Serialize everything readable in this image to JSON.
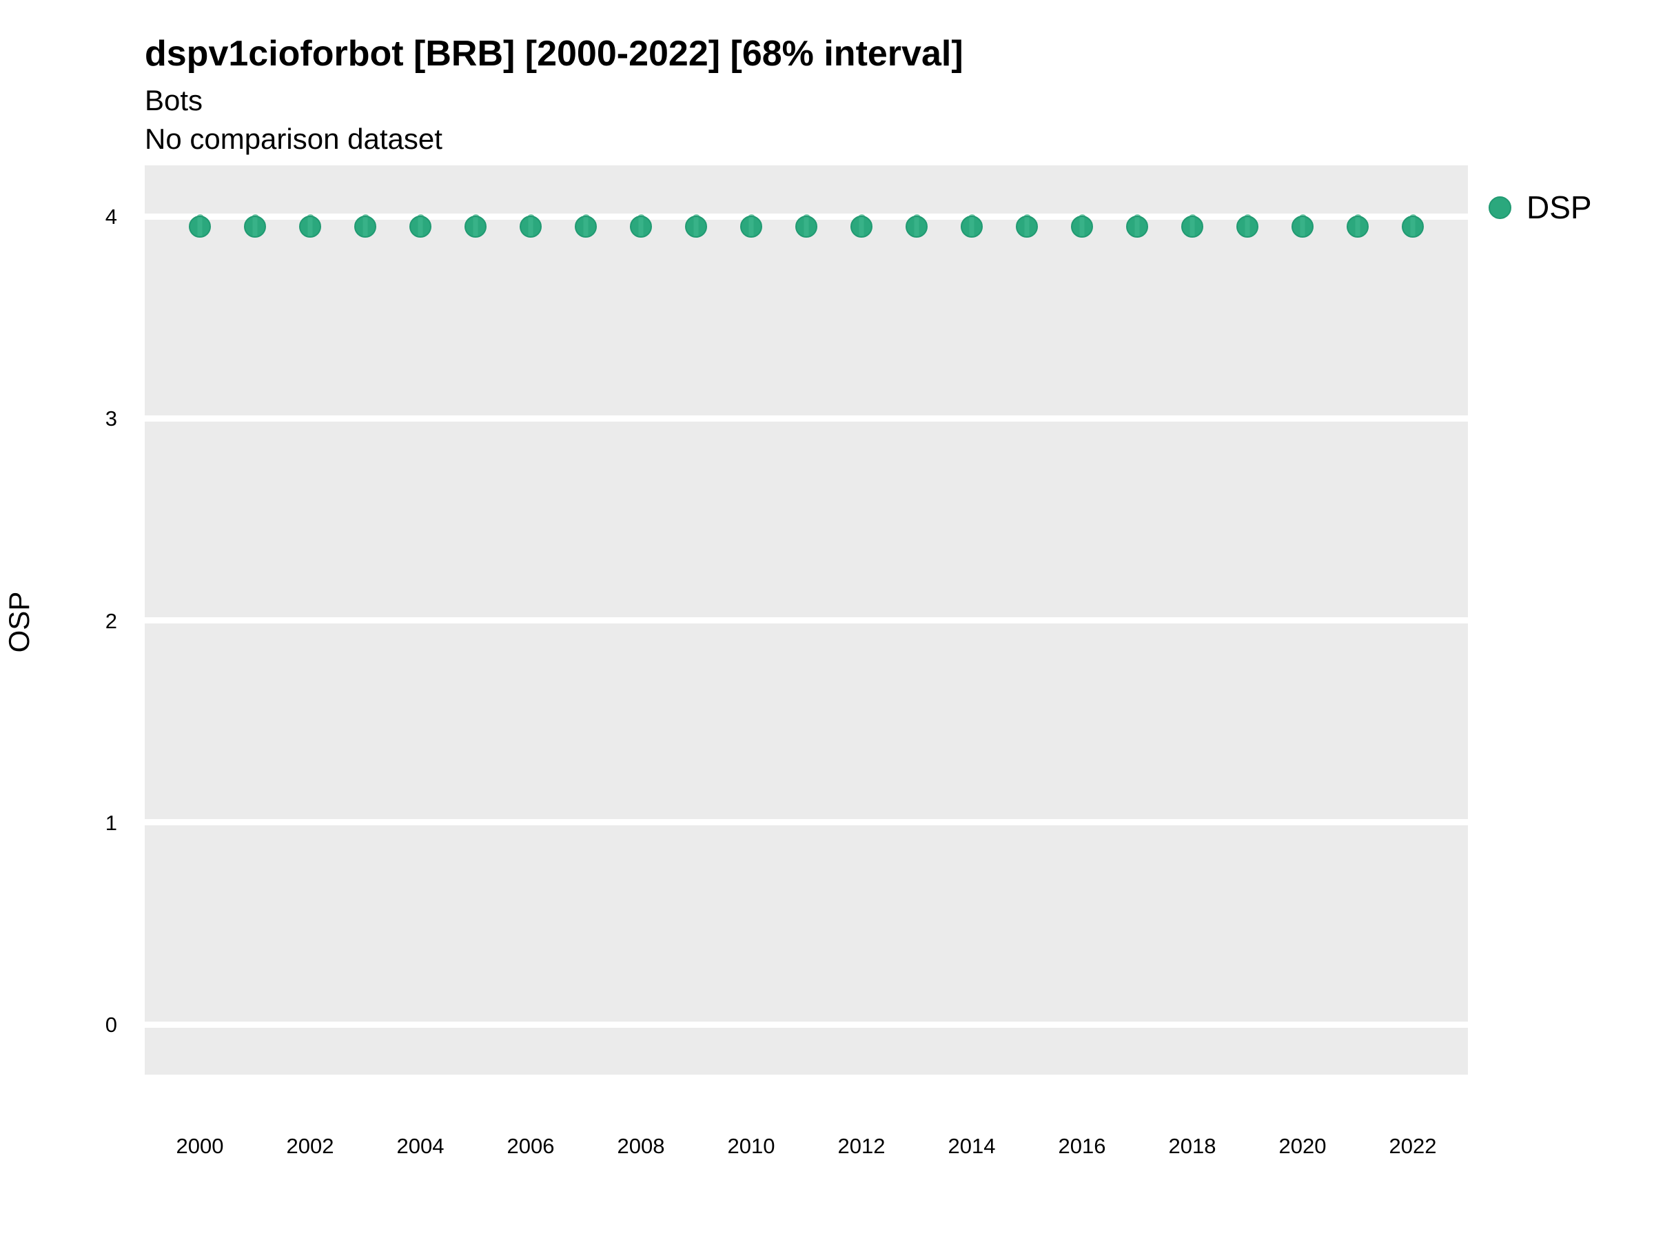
{
  "header": {
    "title": "dspv1cioforbot [BRB] [2000-2022] [68% interval]",
    "subtitle1": "Bots",
    "subtitle2": "No comparison dataset"
  },
  "legend": {
    "items": [
      {
        "label": "DSP",
        "color": "#2BA87D"
      }
    ],
    "position": "right-top"
  },
  "colors": {
    "point_fill": "#2BA87D",
    "point_stroke": "#219A72",
    "point_band": "#38B288",
    "interval": "#5FC09B",
    "panel_bg": "#EBEBEB",
    "gridline": "#FFFFFF",
    "text": "#000000"
  },
  "chart_data": {
    "type": "scatter",
    "subtype": "pointrange",
    "title": "dspv1cioforbot [BRB] [2000-2022] [68% interval]",
    "subtitle": "Bots / No comparison dataset",
    "xlabel": "",
    "ylabel": "OSP",
    "x": [
      2000,
      2001,
      2002,
      2003,
      2004,
      2005,
      2006,
      2007,
      2008,
      2009,
      2010,
      2011,
      2012,
      2013,
      2014,
      2015,
      2016,
      2017,
      2018,
      2019,
      2020,
      2021,
      2022
    ],
    "series": [
      {
        "name": "DSP",
        "values": [
          3.95,
          3.95,
          3.95,
          3.95,
          3.95,
          3.95,
          3.95,
          3.95,
          3.95,
          3.95,
          3.95,
          3.95,
          3.95,
          3.95,
          3.95,
          3.95,
          3.95,
          3.95,
          3.95,
          3.95,
          3.95,
          3.95,
          3.95
        ],
        "interval_low": [
          3.9,
          3.9,
          3.9,
          3.9,
          3.9,
          3.9,
          3.9,
          3.9,
          3.9,
          3.9,
          3.9,
          3.9,
          3.9,
          3.9,
          3.9,
          3.9,
          3.9,
          3.9,
          3.9,
          3.9,
          3.9,
          3.9,
          3.9
        ],
        "interval_high": [
          4.01,
          4.01,
          4.01,
          4.01,
          4.01,
          4.01,
          4.01,
          4.01,
          4.01,
          4.01,
          4.01,
          4.01,
          4.01,
          4.01,
          4.01,
          4.01,
          4.01,
          4.01,
          4.01,
          4.01,
          4.01,
          4.01,
          4.01
        ],
        "interval_level": "68%"
      }
    ],
    "y_ticks": [
      0,
      1,
      2,
      3,
      4
    ],
    "x_tick_labels": [
      "2000",
      "2002",
      "2004",
      "2006",
      "2008",
      "2010",
      "2012",
      "2014",
      "2016",
      "2018",
      "2020",
      "2022"
    ],
    "ylim": [
      -0.26,
      4.25
    ],
    "grid": "horizontal-major-only",
    "legend_position": "right-top"
  }
}
